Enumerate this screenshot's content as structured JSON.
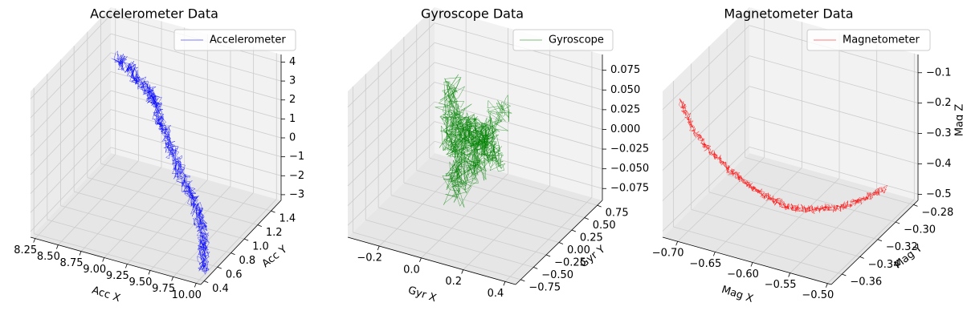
{
  "chart_data": [
    {
      "type": "line3d",
      "title": "Accelerometer Data",
      "xlabel": "Acc X",
      "ylabel": "Acc Y",
      "zlabel": "",
      "xlim": [
        8.2,
        10.05
      ],
      "ylim": [
        0.35,
        1.55
      ],
      "zlim": [
        -3.3,
        4.4
      ],
      "xticks": [
        "8.25",
        "8.50",
        "8.75",
        "9.00",
        "9.25",
        "9.50",
        "9.75",
        "10.00"
      ],
      "yticks": [
        "0.4",
        "0.6",
        "0.8",
        "1.0",
        "1.2",
        "1.4"
      ],
      "zticks": [
        "−3",
        "−2",
        "−1",
        "0",
        "1",
        "2",
        "3",
        "4"
      ],
      "xtick_values": [
        8.25,
        8.5,
        8.75,
        9.0,
        9.25,
        9.5,
        9.75,
        10.0
      ],
      "ytick_values": [
        0.4,
        0.6,
        0.8,
        1.0,
        1.2,
        1.4
      ],
      "ztick_values": [
        -3,
        -2,
        -1,
        0,
        1,
        2,
        3,
        4
      ],
      "legend": "Accelerometer",
      "legend_position": "top-right",
      "color": "#0000ff",
      "grid": true,
      "series": [
        {
          "name": "Accelerometer",
          "x": [
            8.45,
            8.6,
            8.75,
            8.9,
            9.0,
            9.1,
            9.2,
            9.3,
            9.4,
            9.55,
            9.7,
            9.8,
            9.9,
            9.95,
            10.0
          ],
          "y": [
            1.3,
            1.28,
            1.22,
            1.18,
            1.12,
            1.05,
            1.0,
            0.95,
            0.9,
            0.82,
            0.75,
            0.68,
            0.6,
            0.52,
            0.45
          ],
          "z": [
            3.0,
            2.7,
            2.4,
            2.2,
            2.0,
            1.5,
            1.0,
            0.5,
            0.0,
            -0.5,
            -1.0,
            -1.5,
            -2.0,
            -2.5,
            -3.0
          ]
        }
      ]
    },
    {
      "type": "line3d",
      "title": "Gyroscope Data",
      "xlabel": "Gyr X",
      "ylabel": "Gyr Y",
      "zlabel": "",
      "xlim": [
        -0.35,
        0.45
      ],
      "ylim": [
        -0.85,
        0.85
      ],
      "zlim": [
        -0.09,
        0.095
      ],
      "xticks": [
        "−0.2",
        "0.0",
        "0.2",
        "0.4"
      ],
      "yticks": [
        "−0.75",
        "−0.50",
        "−0.25",
        "0.00",
        "0.25",
        "0.50",
        "0.75"
      ],
      "zticks": [
        "−0.075",
        "−0.050",
        "−0.025",
        "0.000",
        "0.025",
        "0.050",
        "0.075"
      ],
      "xtick_values": [
        -0.2,
        0.0,
        0.2,
        0.4
      ],
      "ytick_values": [
        -0.75,
        -0.5,
        -0.25,
        0.0,
        0.25,
        0.5,
        0.75
      ],
      "ztick_values": [
        -0.075,
        -0.05,
        -0.025,
        0.0,
        0.025,
        0.05,
        0.075
      ],
      "legend": "Gyroscope",
      "legend_position": "top-right",
      "color": "#008000",
      "grid": true,
      "series": [
        {
          "name": "Gyroscope",
          "x": [
            -0.1,
            -0.02,
            0.05,
            0.1,
            0.0,
            -0.05,
            0.08,
            0.12,
            -0.08,
            0.02,
            0.06,
            -0.03
          ],
          "y": [
            0.2,
            -0.1,
            0.05,
            0.3,
            -0.2,
            0.1,
            -0.05,
            0.15,
            0.0,
            -0.15,
            0.25,
            -0.3
          ],
          "z": [
            0.06,
            0.02,
            -0.03,
            0.04,
            -0.05,
            0.01,
            0.03,
            -0.02,
            0.05,
            -0.04,
            0.0,
            0.02
          ]
        }
      ]
    },
    {
      "type": "line3d",
      "title": "Magnetometer Data",
      "xlabel": "Mag X",
      "ylabel": "Mag Y",
      "zlabel": "Mag Z",
      "xlim": [
        -0.72,
        -0.495
      ],
      "ylim": [
        -0.372,
        -0.275
      ],
      "zlim": [
        -0.52,
        -0.04
      ],
      "xticks": [
        "−0.70",
        "−0.65",
        "−0.60",
        "−0.55",
        "−0.50"
      ],
      "yticks": [
        "−0.36",
        "−0.34",
        "−0.32",
        "−0.30",
        "−0.28"
      ],
      "zticks": [
        "−0.5",
        "−0.4",
        "−0.3",
        "−0.2",
        "−0.1"
      ],
      "xtick_values": [
        -0.7,
        -0.65,
        -0.6,
        -0.55,
        -0.5
      ],
      "ytick_values": [
        -0.36,
        -0.34,
        -0.32,
        -0.3,
        -0.28
      ],
      "ztick_values": [
        -0.5,
        -0.4,
        -0.3,
        -0.2,
        -0.1
      ],
      "legend": "Magnetometer",
      "legend_position": "top-right",
      "color": "#ff0000",
      "grid": true,
      "series": [
        {
          "name": "Magnetometer",
          "x": [
            -0.71,
            -0.7,
            -0.68,
            -0.66,
            -0.64,
            -0.62,
            -0.6,
            -0.58,
            -0.56,
            -0.54,
            -0.52
          ],
          "y": [
            -0.36,
            -0.355,
            -0.35,
            -0.345,
            -0.34,
            -0.335,
            -0.33,
            -0.32,
            -0.31,
            -0.3,
            -0.29
          ],
          "z": [
            -0.1,
            -0.2,
            -0.28,
            -0.34,
            -0.39,
            -0.43,
            -0.46,
            -0.48,
            -0.49,
            -0.48,
            -0.45
          ]
        }
      ]
    }
  ]
}
